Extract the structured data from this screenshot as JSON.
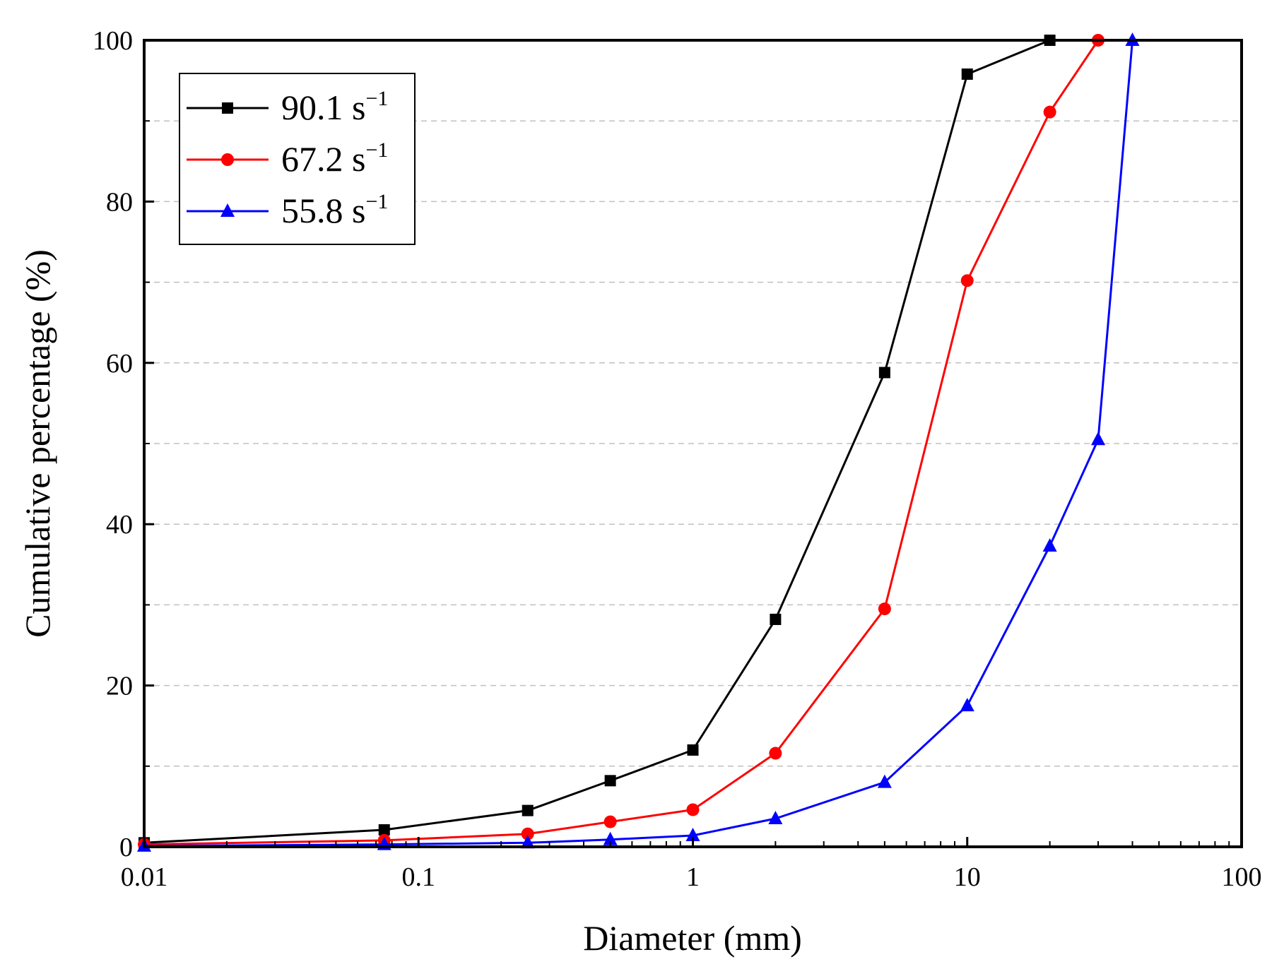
{
  "chart_data": {
    "type": "line",
    "x_scale": "log",
    "xlabel": "Diameter (mm)",
    "ylabel": "Cumulative percentage (%)",
    "xlim": [
      0.01,
      100
    ],
    "ylim": [
      0,
      100
    ],
    "x_ticks": [
      {
        "value": 0.01,
        "label": "0.01"
      },
      {
        "value": 0.1,
        "label": "0.1"
      },
      {
        "value": 1,
        "label": "1"
      },
      {
        "value": 10,
        "label": "10"
      },
      {
        "value": 100,
        "label": "100"
      }
    ],
    "y_ticks": [
      {
        "value": 0,
        "label": "0"
      },
      {
        "value": 20,
        "label": "20"
      },
      {
        "value": 40,
        "label": "40"
      },
      {
        "value": 60,
        "label": "60"
      },
      {
        "value": 80,
        "label": "80"
      },
      {
        "value": 100,
        "label": "100"
      }
    ],
    "gridlines_y": [
      10,
      20,
      30,
      40,
      50,
      60,
      70,
      80,
      90
    ],
    "legend_position": "top-left",
    "series": [
      {
        "name": "90.1 s",
        "unit_superscript": "−1",
        "color": "#000000",
        "marker": "square",
        "x": [
          0.01,
          0.075,
          0.25,
          0.5,
          1,
          2,
          5,
          10,
          20
        ],
        "y": [
          0.5,
          2.1,
          4.5,
          8.2,
          12.0,
          28.2,
          58.8,
          95.8,
          100
        ]
      },
      {
        "name": "67.2 s",
        "unit_superscript": "−1",
        "color": "#ff0000",
        "marker": "circle",
        "x": [
          0.01,
          0.075,
          0.25,
          0.5,
          1,
          2,
          5,
          10,
          20,
          30
        ],
        "y": [
          0.3,
          0.8,
          1.6,
          3.1,
          4.6,
          11.6,
          29.5,
          70.2,
          91.1,
          100
        ]
      },
      {
        "name": "55.8 s",
        "unit_superscript": "−1",
        "color": "#0000ff",
        "marker": "triangle",
        "x": [
          0.01,
          0.075,
          0.25,
          0.5,
          1,
          2,
          5,
          10,
          20,
          30,
          40
        ],
        "y": [
          0.1,
          0.3,
          0.5,
          0.9,
          1.4,
          3.5,
          8.0,
          17.5,
          37.3,
          50.5,
          100
        ]
      }
    ]
  }
}
